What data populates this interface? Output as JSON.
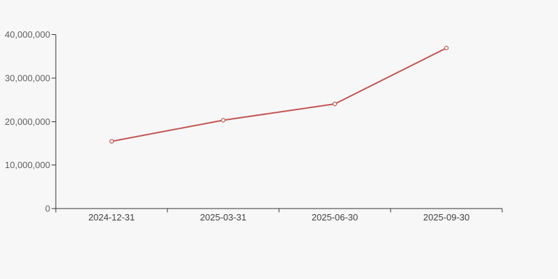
{
  "page": {
    "background_color": "#f7f7f7"
  },
  "chart_data": {
    "type": "line",
    "title": "",
    "xlabel": "",
    "ylabel": "",
    "x": [
      "2024-12-31",
      "2025-03-31",
      "2025-06-30",
      "2025-09-30"
    ],
    "series": [
      {
        "name": "series-1",
        "color": "#c25553",
        "values": [
          15450000,
          20300000,
          24050000,
          36900000
        ]
      }
    ],
    "ylim": [
      0,
      40000000
    ],
    "y_ticks": [
      0,
      10000000,
      20000000,
      30000000,
      40000000
    ],
    "y_tick_labels": [
      "0",
      "10,000,000",
      "20,000,000",
      "30,000,000",
      "40,000,000"
    ],
    "x_tick_labels": [
      "2024-12-31",
      "2025-03-31",
      "2025-06-30",
      "2025-09-30"
    ],
    "grid": false,
    "legend_visible": false,
    "marker_style": "hollow-circle",
    "colors": {
      "line": "#c25553",
      "marker_fill": "#ffffff",
      "axis": "#333333",
      "y_tick_label": "#5f5f5f",
      "x_tick_label": "#3f3f3f",
      "background": "#f7f7f7"
    }
  }
}
